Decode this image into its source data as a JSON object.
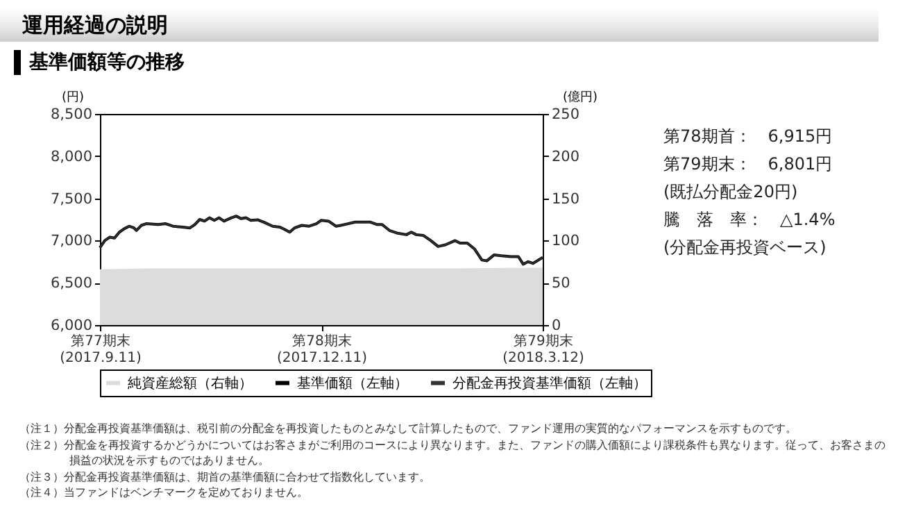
{
  "chart_data": {
    "type": "line",
    "title": "運用経過の説明",
    "subtitle": "基準価額等の推移",
    "ylabel": "(円)",
    "y2label": "(億円)",
    "xlim": [
      "2017-09-11",
      "2018-03-12"
    ],
    "xticks": [
      {
        "value": "2017-09-11",
        "label": "第77期末\n(2017.9.11)"
      },
      {
        "value": "2017-12-11",
        "label": "第78期末\n(2017.12.11)"
      },
      {
        "value": "2018-03-12",
        "label": "第79期末\n(2018.3.12)"
      }
    ],
    "ylim": [
      6000,
      8500
    ],
    "yticks": [
      {
        "value": 6000,
        "label": "6,000"
      },
      {
        "value": 6500,
        "label": "6,500"
      },
      {
        "value": 7000,
        "label": "7,000"
      },
      {
        "value": 7500,
        "label": "7,500"
      },
      {
        "value": 8000,
        "label": "8,000"
      },
      {
        "value": 8500,
        "label": "8,500"
      }
    ],
    "y2lim": [
      0,
      250
    ],
    "y2ticks": [
      0,
      50,
      100,
      150,
      200,
      250
    ],
    "legend": "bottom",
    "grid": false,
    "series": [
      {
        "name": "純資産総額（右軸）",
        "type": "area",
        "axis": "y2",
        "color": "#dcdcdc",
        "x": [
          "2017-09-11",
          "2017-10-01",
          "2017-11-01",
          "2017-12-01",
          "2018-01-01",
          "2018-02-01",
          "2018-03-12"
        ],
        "values": [
          66,
          67,
          67,
          67,
          67,
          67,
          68
        ]
      },
      {
        "name": "基準価額（左軸）",
        "type": "line",
        "color": "#000000",
        "x": [
          "2017-09-11",
          "2017-09-13",
          "2017-09-15",
          "2017-09-17",
          "2017-09-19",
          "2017-09-21",
          "2017-09-23",
          "2017-09-25",
          "2017-09-26",
          "2017-09-28",
          "2017-09-30",
          "2017-10-03",
          "2017-10-05",
          "2017-10-08",
          "2017-10-11",
          "2017-10-15",
          "2017-10-18",
          "2017-10-20",
          "2017-10-22",
          "2017-10-24",
          "2017-10-26",
          "2017-10-28",
          "2017-10-30",
          "2017-11-01",
          "2017-11-04",
          "2017-11-06",
          "2017-11-08",
          "2017-11-10",
          "2017-11-12",
          "2017-11-15",
          "2017-11-18",
          "2017-11-21",
          "2017-11-24",
          "2017-11-26",
          "2017-11-28",
          "2017-11-30",
          "2017-12-03",
          "2017-12-06",
          "2017-12-09",
          "2017-12-11",
          "2017-12-14",
          "2017-12-17",
          "2017-12-19",
          "2017-12-22",
          "2017-12-25",
          "2017-12-28",
          "2017-12-31",
          "2018-01-03",
          "2018-01-05",
          "2018-01-08",
          "2018-01-11",
          "2018-01-15",
          "2018-01-17",
          "2018-01-19",
          "2018-01-22",
          "2018-01-25",
          "2018-01-28",
          "2018-01-31",
          "2018-02-04",
          "2018-02-06",
          "2018-02-09",
          "2018-02-12",
          "2018-02-15",
          "2018-02-17",
          "2018-02-20",
          "2018-02-23",
          "2018-02-27",
          "2018-03-02",
          "2018-03-04",
          "2018-03-06",
          "2018-03-08",
          "2018-03-12"
        ],
        "values": [
          6915,
          7000,
          7040,
          7030,
          7100,
          7140,
          7170,
          7150,
          7120,
          7180,
          7200,
          7195,
          7190,
          7200,
          7170,
          7160,
          7150,
          7190,
          7250,
          7230,
          7270,
          7240,
          7270,
          7230,
          7270,
          7290,
          7260,
          7270,
          7240,
          7245,
          7210,
          7170,
          7160,
          7130,
          7100,
          7150,
          7180,
          7170,
          7200,
          7240,
          7230,
          7170,
          7180,
          7200,
          7220,
          7220,
          7220,
          7190,
          7190,
          7120,
          7090,
          7070,
          7100,
          7070,
          7060,
          7000,
          6930,
          6950,
          7000,
          6970,
          6970,
          6900,
          6770,
          6760,
          6830,
          6820,
          6810,
          6810,
          6720,
          6750,
          6730,
          6801
        ]
      },
      {
        "name": "分配金再投資基準価額（左軸）",
        "type": "line",
        "color": "#333333",
        "x": [
          "2017-09-11",
          "2017-09-13",
          "2017-09-15",
          "2017-09-17",
          "2017-09-19",
          "2017-09-21",
          "2017-09-23",
          "2017-09-25",
          "2017-09-26",
          "2017-09-28",
          "2017-09-30",
          "2017-10-03",
          "2017-10-05",
          "2017-10-08",
          "2017-10-11",
          "2017-10-15",
          "2017-10-18",
          "2017-10-20",
          "2017-10-22",
          "2017-10-24",
          "2017-10-26",
          "2017-10-28",
          "2017-10-30",
          "2017-11-01",
          "2017-11-04",
          "2017-11-06",
          "2017-11-08",
          "2017-11-10",
          "2017-11-12",
          "2017-11-15",
          "2017-11-18",
          "2017-11-21",
          "2017-11-24",
          "2017-11-26",
          "2017-11-28",
          "2017-11-30",
          "2017-12-03",
          "2017-12-06",
          "2017-12-09",
          "2017-12-11",
          "2017-12-14",
          "2017-12-17",
          "2017-12-19",
          "2017-12-22",
          "2017-12-25",
          "2017-12-28",
          "2017-12-31",
          "2018-01-03",
          "2018-01-05",
          "2018-01-08",
          "2018-01-11",
          "2018-01-15",
          "2018-01-17",
          "2018-01-19",
          "2018-01-22",
          "2018-01-25",
          "2018-01-28",
          "2018-01-31",
          "2018-02-04",
          "2018-02-06",
          "2018-02-09",
          "2018-02-12",
          "2018-02-15",
          "2018-02-17",
          "2018-02-20",
          "2018-02-23",
          "2018-02-27",
          "2018-03-02",
          "2018-03-04",
          "2018-03-06",
          "2018-03-08",
          "2018-03-12"
        ],
        "values": [
          6915,
          7000,
          7040,
          7030,
          7100,
          7140,
          7170,
          7150,
          7120,
          7180,
          7200,
          7195,
          7190,
          7200,
          7170,
          7160,
          7150,
          7190,
          7250,
          7230,
          7270,
          7240,
          7270,
          7230,
          7270,
          7290,
          7260,
          7270,
          7240,
          7245,
          7210,
          7170,
          7160,
          7130,
          7100,
          7150,
          7180,
          7170,
          7200,
          7240,
          7230,
          7170,
          7180,
          7200,
          7220,
          7220,
          7220,
          7190,
          7190,
          7120,
          7090,
          7070,
          7100,
          7070,
          7060,
          7000,
          6930,
          6950,
          7000,
          6970,
          6970,
          6900,
          6770,
          6760,
          6830,
          6820,
          6810,
          6810,
          6720,
          6750,
          6730,
          6801
        ]
      }
    ],
    "annotations": [
      "第78期首：　6,915円",
      "第79期末：　6,801円",
      "(既払分配金20円)",
      "騰　落　率：　△1.4%",
      "(分配金再投資ベース)",
      "（注１）分配金再投資基準価額は、税引前の分配金を再投資したものとみなして計算したもので、ファンド運用の実質的なパフォーマンスを示すものです。",
      "（注２）分配金を再投資するかどうかについてはお客さまがご利用のコースにより異なります。また、ファンドの購入価額により課税条件も異なります。従って、お客さまの損益の状況を示すものではありません。",
      "（注３）分配金再投資基準価額は、期首の基準価額に合わせて指数化しています。",
      "（注４）当ファンドはベンチマークを定めておりません。"
    ]
  }
}
